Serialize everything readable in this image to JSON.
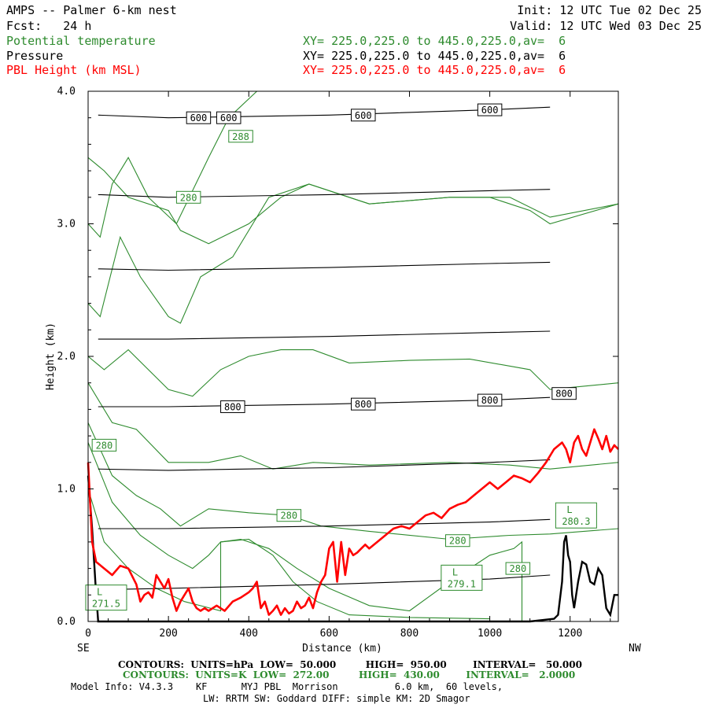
{
  "header": {
    "title_left": "AMPS -- Palmer 6-km nest",
    "fcst": "Fcst:   24 h",
    "init": "Init: 12 UTC Tue 02 Dec 25",
    "valid": "Valid: 12 UTC Wed 03 Dec 25",
    "legend": [
      {
        "name": "Potential temperature",
        "xy": "XY= 225.0,225.0 to 445.0,225.0,av=  6",
        "color": "#2e8b2e"
      },
      {
        "name": "Pressure",
        "xy": "XY= 225.0,225.0 to 445.0,225.0,av=  6",
        "color": "#000000"
      },
      {
        "name": "PBL Height (km MSL)",
        "xy": "XY= 225.0,225.0 to 445.0,225.0,av=  6",
        "color": "#ff0000"
      }
    ]
  },
  "chart_data": {
    "type": "line",
    "title": "AMPS -- Palmer 6-km nest cross-section",
    "xlabel": "Distance (km)",
    "ylabel": "Height (km)",
    "xlim": [
      0,
      1320
    ],
    "ylim": [
      0,
      4.0
    ],
    "x_ticks": [
      "0",
      "200",
      "400",
      "600",
      "800",
      "1000",
      "1200"
    ],
    "y_ticks": [
      "0.0",
      "1.0",
      "2.0",
      "3.0",
      "4.0"
    ],
    "x_end_labels": {
      "left": "SE",
      "right": "NW"
    },
    "pressure_labels": [
      {
        "text": "600",
        "x": 275,
        "y": 3.8
      },
      {
        "text": "600",
        "x": 350,
        "y": 3.8
      },
      {
        "text": "600",
        "x": 685,
        "y": 3.82
      },
      {
        "text": "600",
        "x": 1000,
        "y": 3.86
      },
      {
        "text": "800",
        "x": 360,
        "y": 1.62
      },
      {
        "text": "800",
        "x": 685,
        "y": 1.64
      },
      {
        "text": "800",
        "x": 1000,
        "y": 1.67
      },
      {
        "text": "800",
        "x": 1185,
        "y": 1.72
      }
    ],
    "theta_labels": [
      {
        "text": "288",
        "x": 380,
        "y": 3.66
      },
      {
        "text": "280",
        "x": 250,
        "y": 3.2
      },
      {
        "text": "280",
        "x": 40,
        "y": 1.33
      },
      {
        "text": "280",
        "x": 500,
        "y": 0.8
      },
      {
        "text": "280",
        "x": 920,
        "y": 0.61
      },
      {
        "text": "280",
        "x": 1070,
        "y": 0.4
      }
    ],
    "low_labels": [
      {
        "text": "L",
        "value": "271.5",
        "x": 45,
        "y": 0.18
      },
      {
        "text": "L",
        "value": "279.1",
        "x": 930,
        "y": 0.33
      },
      {
        "text": "L",
        "value": "280.3",
        "x": 1215,
        "y": 0.8
      }
    ],
    "series": [
      {
        "name": "PBL Height (km MSL)",
        "color": "#ff0000",
        "x": [
          0,
          10,
          20,
          40,
          60,
          80,
          100,
          120,
          130,
          140,
          150,
          160,
          170,
          180,
          190,
          200,
          210,
          220,
          230,
          240,
          250,
          260,
          270,
          280,
          290,
          300,
          320,
          340,
          360,
          380,
          400,
          410,
          420,
          430,
          440,
          450,
          460,
          470,
          480,
          490,
          500,
          510,
          520,
          530,
          540,
          550,
          560,
          570,
          580,
          590,
          600,
          610,
          620,
          630,
          640,
          650,
          660,
          670,
          680,
          690,
          700,
          720,
          740,
          760,
          780,
          800,
          820,
          840,
          860,
          880,
          900,
          920,
          940,
          960,
          980,
          1000,
          1020,
          1040,
          1060,
          1080,
          1100,
          1120,
          1140,
          1160,
          1180,
          1190,
          1200,
          1210,
          1220,
          1230,
          1240,
          1250,
          1260,
          1270,
          1280,
          1290,
          1300,
          1310,
          1320
        ],
        "values": [
          1.2,
          0.6,
          0.45,
          0.4,
          0.35,
          0.42,
          0.4,
          0.28,
          0.15,
          0.2,
          0.22,
          0.18,
          0.35,
          0.3,
          0.25,
          0.32,
          0.18,
          0.08,
          0.15,
          0.2,
          0.25,
          0.15,
          0.1,
          0.08,
          0.1,
          0.08,
          0.12,
          0.08,
          0.15,
          0.18,
          0.22,
          0.25,
          0.3,
          0.1,
          0.15,
          0.05,
          0.08,
          0.12,
          0.05,
          0.1,
          0.06,
          0.08,
          0.15,
          0.1,
          0.12,
          0.18,
          0.1,
          0.22,
          0.3,
          0.35,
          0.55,
          0.6,
          0.3,
          0.6,
          0.35,
          0.55,
          0.5,
          0.52,
          0.55,
          0.58,
          0.55,
          0.6,
          0.65,
          0.7,
          0.72,
          0.7,
          0.75,
          0.8,
          0.82,
          0.78,
          0.85,
          0.88,
          0.9,
          0.95,
          1.0,
          1.05,
          1.0,
          1.05,
          1.1,
          1.08,
          1.05,
          1.12,
          1.2,
          1.3,
          1.35,
          1.3,
          1.2,
          1.35,
          1.4,
          1.3,
          1.25,
          1.35,
          1.45,
          1.38,
          1.3,
          1.4,
          1.28,
          1.33,
          1.3
        ]
      },
      {
        "name": "Terrain height (km)",
        "color": "#000000",
        "x": [
          0,
          10,
          18,
          25,
          40,
          100,
          200,
          400,
          600,
          800,
          1000,
          1100,
          1160,
          1170,
          1180,
          1185,
          1190,
          1195,
          1200,
          1205,
          1210,
          1220,
          1230,
          1240,
          1250,
          1260,
          1270,
          1280,
          1290,
          1300,
          1310,
          1320
        ],
        "values": [
          1.1,
          0.7,
          0.3,
          0.0,
          0.0,
          0.0,
          0.0,
          0.0,
          0.0,
          0.0,
          0.0,
          0.0,
          0.02,
          0.05,
          0.3,
          0.6,
          0.65,
          0.5,
          0.45,
          0.2,
          0.1,
          0.3,
          0.45,
          0.43,
          0.3,
          0.28,
          0.4,
          0.35,
          0.1,
          0.05,
          0.2,
          0.2
        ]
      },
      {
        "name": "Pressure levels (hPa)",
        "color": "#000000",
        "levels": [
          {
            "x": [
              25,
              200,
              600,
              1000,
              1150
            ],
            "values": [
              3.82,
              3.8,
              3.82,
              3.86,
              3.88
            ]
          },
          {
            "x": [
              25,
              200,
              600,
              1000,
              1150
            ],
            "values": [
              3.22,
              3.2,
              3.22,
              3.25,
              3.26
            ]
          },
          {
            "x": [
              25,
              200,
              600,
              1000,
              1150
            ],
            "values": [
              2.66,
              2.65,
              2.67,
              2.7,
              2.71
            ]
          },
          {
            "x": [
              25,
              200,
              600,
              1000,
              1150
            ],
            "values": [
              2.13,
              2.13,
              2.15,
              2.18,
              2.19
            ]
          },
          {
            "x": [
              25,
              200,
              600,
              1000,
              1150
            ],
            "values": [
              1.62,
              1.62,
              1.64,
              1.67,
              1.69
            ]
          },
          {
            "x": [
              25,
              200,
              600,
              1000,
              1150
            ],
            "values": [
              1.15,
              1.14,
              1.16,
              1.2,
              1.22
            ]
          },
          {
            "x": [
              25,
              200,
              600,
              1000,
              1150
            ],
            "values": [
              0.7,
              0.7,
              0.72,
              0.75,
              0.77
            ]
          },
          {
            "x": [
              25,
              200,
              600,
              1000,
              1150
            ],
            "values": [
              0.24,
              0.25,
              0.28,
              0.32,
              0.35
            ]
          }
        ]
      }
    ],
    "theta_isolines": [
      [
        [
          0,
          3.0
        ],
        [
          30,
          2.9
        ],
        [
          60,
          3.3
        ],
        [
          100,
          3.5
        ],
        [
          150,
          3.2
        ],
        [
          220,
          3.0
        ],
        [
          300,
          3.5
        ],
        [
          350,
          3.8
        ],
        [
          420,
          4.0
        ]
      ],
      [
        [
          0,
          3.5
        ],
        [
          40,
          3.4
        ],
        [
          100,
          3.2
        ],
        [
          200,
          3.1
        ],
        [
          230,
          2.95
        ],
        [
          300,
          2.85
        ],
        [
          400,
          3.0
        ],
        [
          480,
          3.2
        ],
        [
          550,
          3.3
        ],
        [
          700,
          3.15
        ],
        [
          900,
          3.2
        ],
        [
          1050,
          3.2
        ],
        [
          1150,
          3.05
        ],
        [
          1320,
          3.15
        ]
      ],
      [
        [
          0,
          2.4
        ],
        [
          30,
          2.3
        ],
        [
          80,
          2.9
        ],
        [
          130,
          2.6
        ],
        [
          200,
          2.3
        ],
        [
          230,
          2.25
        ],
        [
          280,
          2.6
        ],
        [
          360,
          2.75
        ],
        [
          450,
          3.2
        ],
        [
          550,
          3.3
        ],
        [
          700,
          3.15
        ],
        [
          900,
          3.2
        ],
        [
          1000,
          3.2
        ],
        [
          1100,
          3.1
        ],
        [
          1150,
          3.0
        ],
        [
          1320,
          3.15
        ]
      ],
      [
        [
          0,
          2.0
        ],
        [
          40,
          1.9
        ],
        [
          100,
          2.05
        ],
        [
          200,
          1.75
        ],
        [
          260,
          1.7
        ],
        [
          330,
          1.9
        ],
        [
          400,
          2.0
        ],
        [
          480,
          2.05
        ],
        [
          560,
          2.05
        ],
        [
          650,
          1.95
        ],
        [
          800,
          1.97
        ],
        [
          950,
          1.98
        ],
        [
          1100,
          1.9
        ],
        [
          1150,
          1.75
        ],
        [
          1320,
          1.8
        ]
      ],
      [
        [
          0,
          1.8
        ],
        [
          60,
          1.5
        ],
        [
          120,
          1.45
        ],
        [
          200,
          1.2
        ],
        [
          240,
          1.2
        ],
        [
          300,
          1.2
        ],
        [
          380,
          1.25
        ],
        [
          460,
          1.15
        ],
        [
          560,
          1.2
        ],
        [
          700,
          1.18
        ],
        [
          900,
          1.2
        ],
        [
          1050,
          1.18
        ],
        [
          1150,
          1.15
        ],
        [
          1320,
          1.2
        ]
      ],
      [
        [
          0,
          1.5
        ],
        [
          60,
          1.1
        ],
        [
          120,
          0.95
        ],
        [
          180,
          0.85
        ],
        [
          230,
          0.72
        ],
        [
          300,
          0.85
        ],
        [
          400,
          0.82
        ],
        [
          500,
          0.8
        ],
        [
          580,
          0.72
        ],
        [
          700,
          0.68
        ],
        [
          900,
          0.62
        ],
        [
          1050,
          0.65
        ],
        [
          1150,
          0.66
        ],
        [
          1320,
          0.7
        ]
      ],
      [
        [
          0,
          1.35
        ],
        [
          60,
          0.9
        ],
        [
          130,
          0.65
        ],
        [
          200,
          0.5
        ],
        [
          260,
          0.4
        ],
        [
          300,
          0.5
        ],
        [
          330,
          0.6
        ],
        [
          380,
          0.62
        ],
        [
          450,
          0.55
        ],
        [
          520,
          0.4
        ],
        [
          600,
          0.25
        ],
        [
          700,
          0.12
        ],
        [
          800,
          0.08
        ],
        [
          900,
          0.3
        ],
        [
          1000,
          0.5
        ],
        [
          1060,
          0.55
        ],
        [
          1080,
          0.6
        ],
        [
          1080,
          0.0
        ]
      ],
      [
        [
          0,
          1.0
        ],
        [
          40,
          0.6
        ],
        [
          100,
          0.4
        ],
        [
          170,
          0.25
        ],
        [
          240,
          0.15
        ],
        [
          330,
          0.08
        ],
        [
          330,
          0.6
        ],
        [
          400,
          0.62
        ],
        [
          460,
          0.5
        ],
        [
          510,
          0.3
        ],
        [
          570,
          0.15
        ],
        [
          650,
          0.05
        ],
        [
          800,
          0.03
        ],
        [
          1000,
          0.02
        ]
      ]
    ]
  },
  "footer": {
    "contours1": "CONTOURS:  UNITS=hPa  LOW=  50.000         HIGH=  950.00        INTERVAL=   50.000",
    "contours2": "CONTOURS:  UNITS=K  LOW=  272.00         HIGH=  430.00        INTERVAL=   2.0000",
    "model": "Model Info: V4.3.3    KF      MYJ PBL  Morrison          6.0 km,  60 levels,",
    "physics": "LW: RRTM SW: Goddard DIFF: simple KM: 2D Smagor"
  }
}
